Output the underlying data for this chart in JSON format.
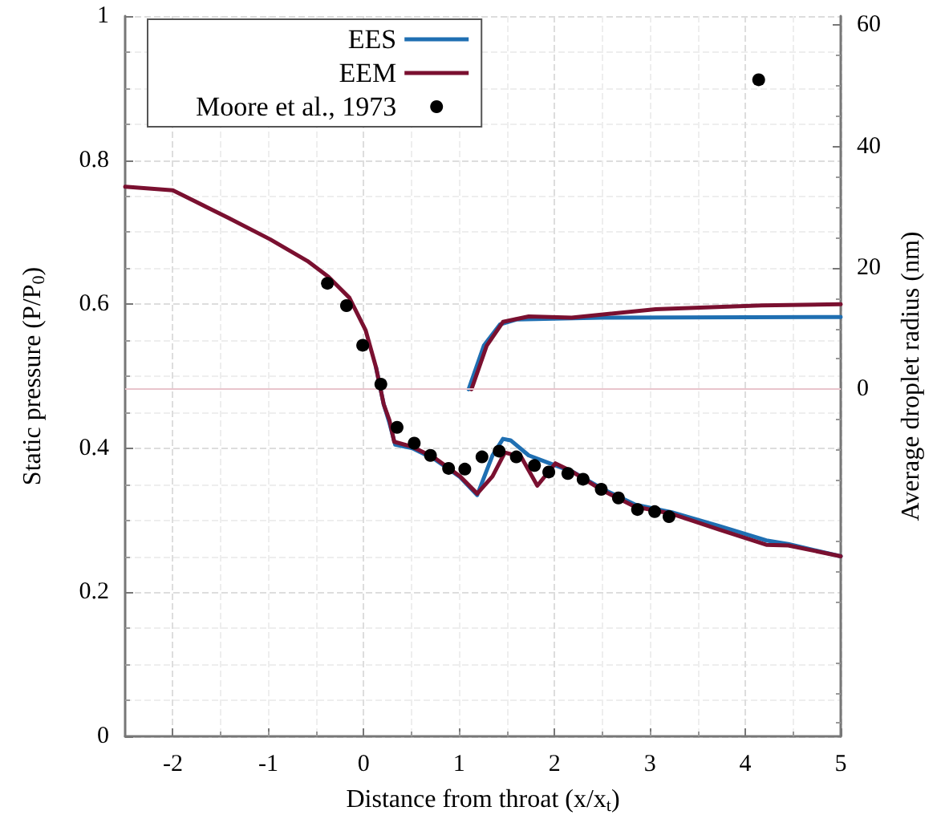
{
  "chart_data": {
    "type": "line",
    "xlabel": "Distance from throat (x/x$_{t}$)",
    "ylabel": "Static pressure (P/P$_{0}$)",
    "y2label": "Average droplet radius (nm)",
    "xlim": [
      -2.5,
      5
    ],
    "xticks": [
      -2,
      -1,
      0,
      1,
      2,
      3,
      4,
      5
    ],
    "ylim": [
      0,
      1
    ],
    "yticks": [
      0,
      0.2,
      0.4,
      0.6,
      0.8,
      1
    ],
    "y2lim": [
      -57.2,
      61.5
    ],
    "y2ticks": [
      0,
      20,
      40,
      60
    ],
    "grid": true,
    "legend": "top left",
    "line_style": "solid",
    "ref_lines": [
      {
        "axis": "y2",
        "value": 0,
        "label": null,
        "color": "#e8c4cc"
      }
    ],
    "series": [
      {
        "name": "EES",
        "marker": "none",
        "color": "#1f6fb2",
        "x": [
          0.13,
          0.21,
          0.27,
          0.33,
          0.51,
          0.74,
          1.01,
          1.19,
          1.35,
          1.46,
          1.54,
          1.73,
          1.95,
          2.18,
          2.51,
          2.84,
          3.23,
          3.73,
          4.22,
          4.45,
          5.0
        ],
        "values": [
          0.512,
          0.461,
          0.435,
          0.405,
          0.4,
          0.385,
          0.36,
          0.335,
          0.39,
          0.413,
          0.411,
          0.39,
          0.379,
          0.368,
          0.343,
          0.322,
          0.311,
          0.292,
          0.272,
          0.267,
          0.25
        ]
      },
      {
        "name": "EEM",
        "marker": "none",
        "color": "#7a1030",
        "x": [
          -2.5,
          -2.0,
          -1.42,
          -0.98,
          -0.59,
          -0.37,
          -0.15,
          0.02,
          0.13,
          0.21,
          0.27,
          0.32,
          0.51,
          0.74,
          1.01,
          1.19,
          1.35,
          1.48,
          1.65,
          1.82,
          2.01,
          2.18,
          2.51,
          2.84,
          3.23,
          3.73,
          4.22,
          4.45,
          5.0
        ],
        "values": [
          0.763,
          0.758,
          0.72,
          0.69,
          0.66,
          0.638,
          0.609,
          0.564,
          0.512,
          0.461,
          0.439,
          0.409,
          0.402,
          0.387,
          0.361,
          0.337,
          0.361,
          0.394,
          0.388,
          0.348,
          0.379,
          0.368,
          0.341,
          0.319,
          0.309,
          0.287,
          0.266,
          0.265,
          0.25
        ]
      },
      {
        "name": "Moore et al., 1973",
        "type": "scatter",
        "marker": "circle",
        "color": "#000000",
        "x": [
          -0.38,
          -0.18,
          -0.01,
          0.18,
          0.35,
          0.53,
          0.7,
          0.89,
          1.06,
          1.24,
          1.42,
          1.6,
          1.79,
          1.94,
          2.14,
          2.3,
          2.49,
          2.67,
          2.87,
          3.05,
          3.2
        ],
        "values": [
          0.629,
          0.598,
          0.543,
          0.489,
          0.429,
          0.407,
          0.39,
          0.372,
          0.371,
          0.388,
          0.396,
          0.388,
          0.376,
          0.367,
          0.365,
          0.357,
          0.343,
          0.331,
          0.315,
          0.312,
          0.305
        ]
      },
      {
        "axis": "y2",
        "marker": "none",
        "color": "#1f6fb2",
        "x": [
          1.1,
          1.26,
          1.43,
          1.6,
          2.5,
          5.0
        ],
        "values": [
          0,
          7.2,
          10.7,
          11.5,
          11.8,
          11.9
        ]
      },
      {
        "axis": "y2",
        "marker": "none",
        "color": "#7a1030",
        "x": [
          1.13,
          1.29,
          1.46,
          1.73,
          2.18,
          3.06,
          4.17,
          5.0
        ],
        "values": [
          0,
          7.2,
          11.1,
          12.0,
          11.8,
          13.2,
          13.8,
          14.0
        ]
      },
      {
        "type": "scatter",
        "axis": "y2",
        "marker": "circle",
        "color": "#000000",
        "x": [
          4.14
        ],
        "values": [
          51
        ]
      }
    ]
  }
}
